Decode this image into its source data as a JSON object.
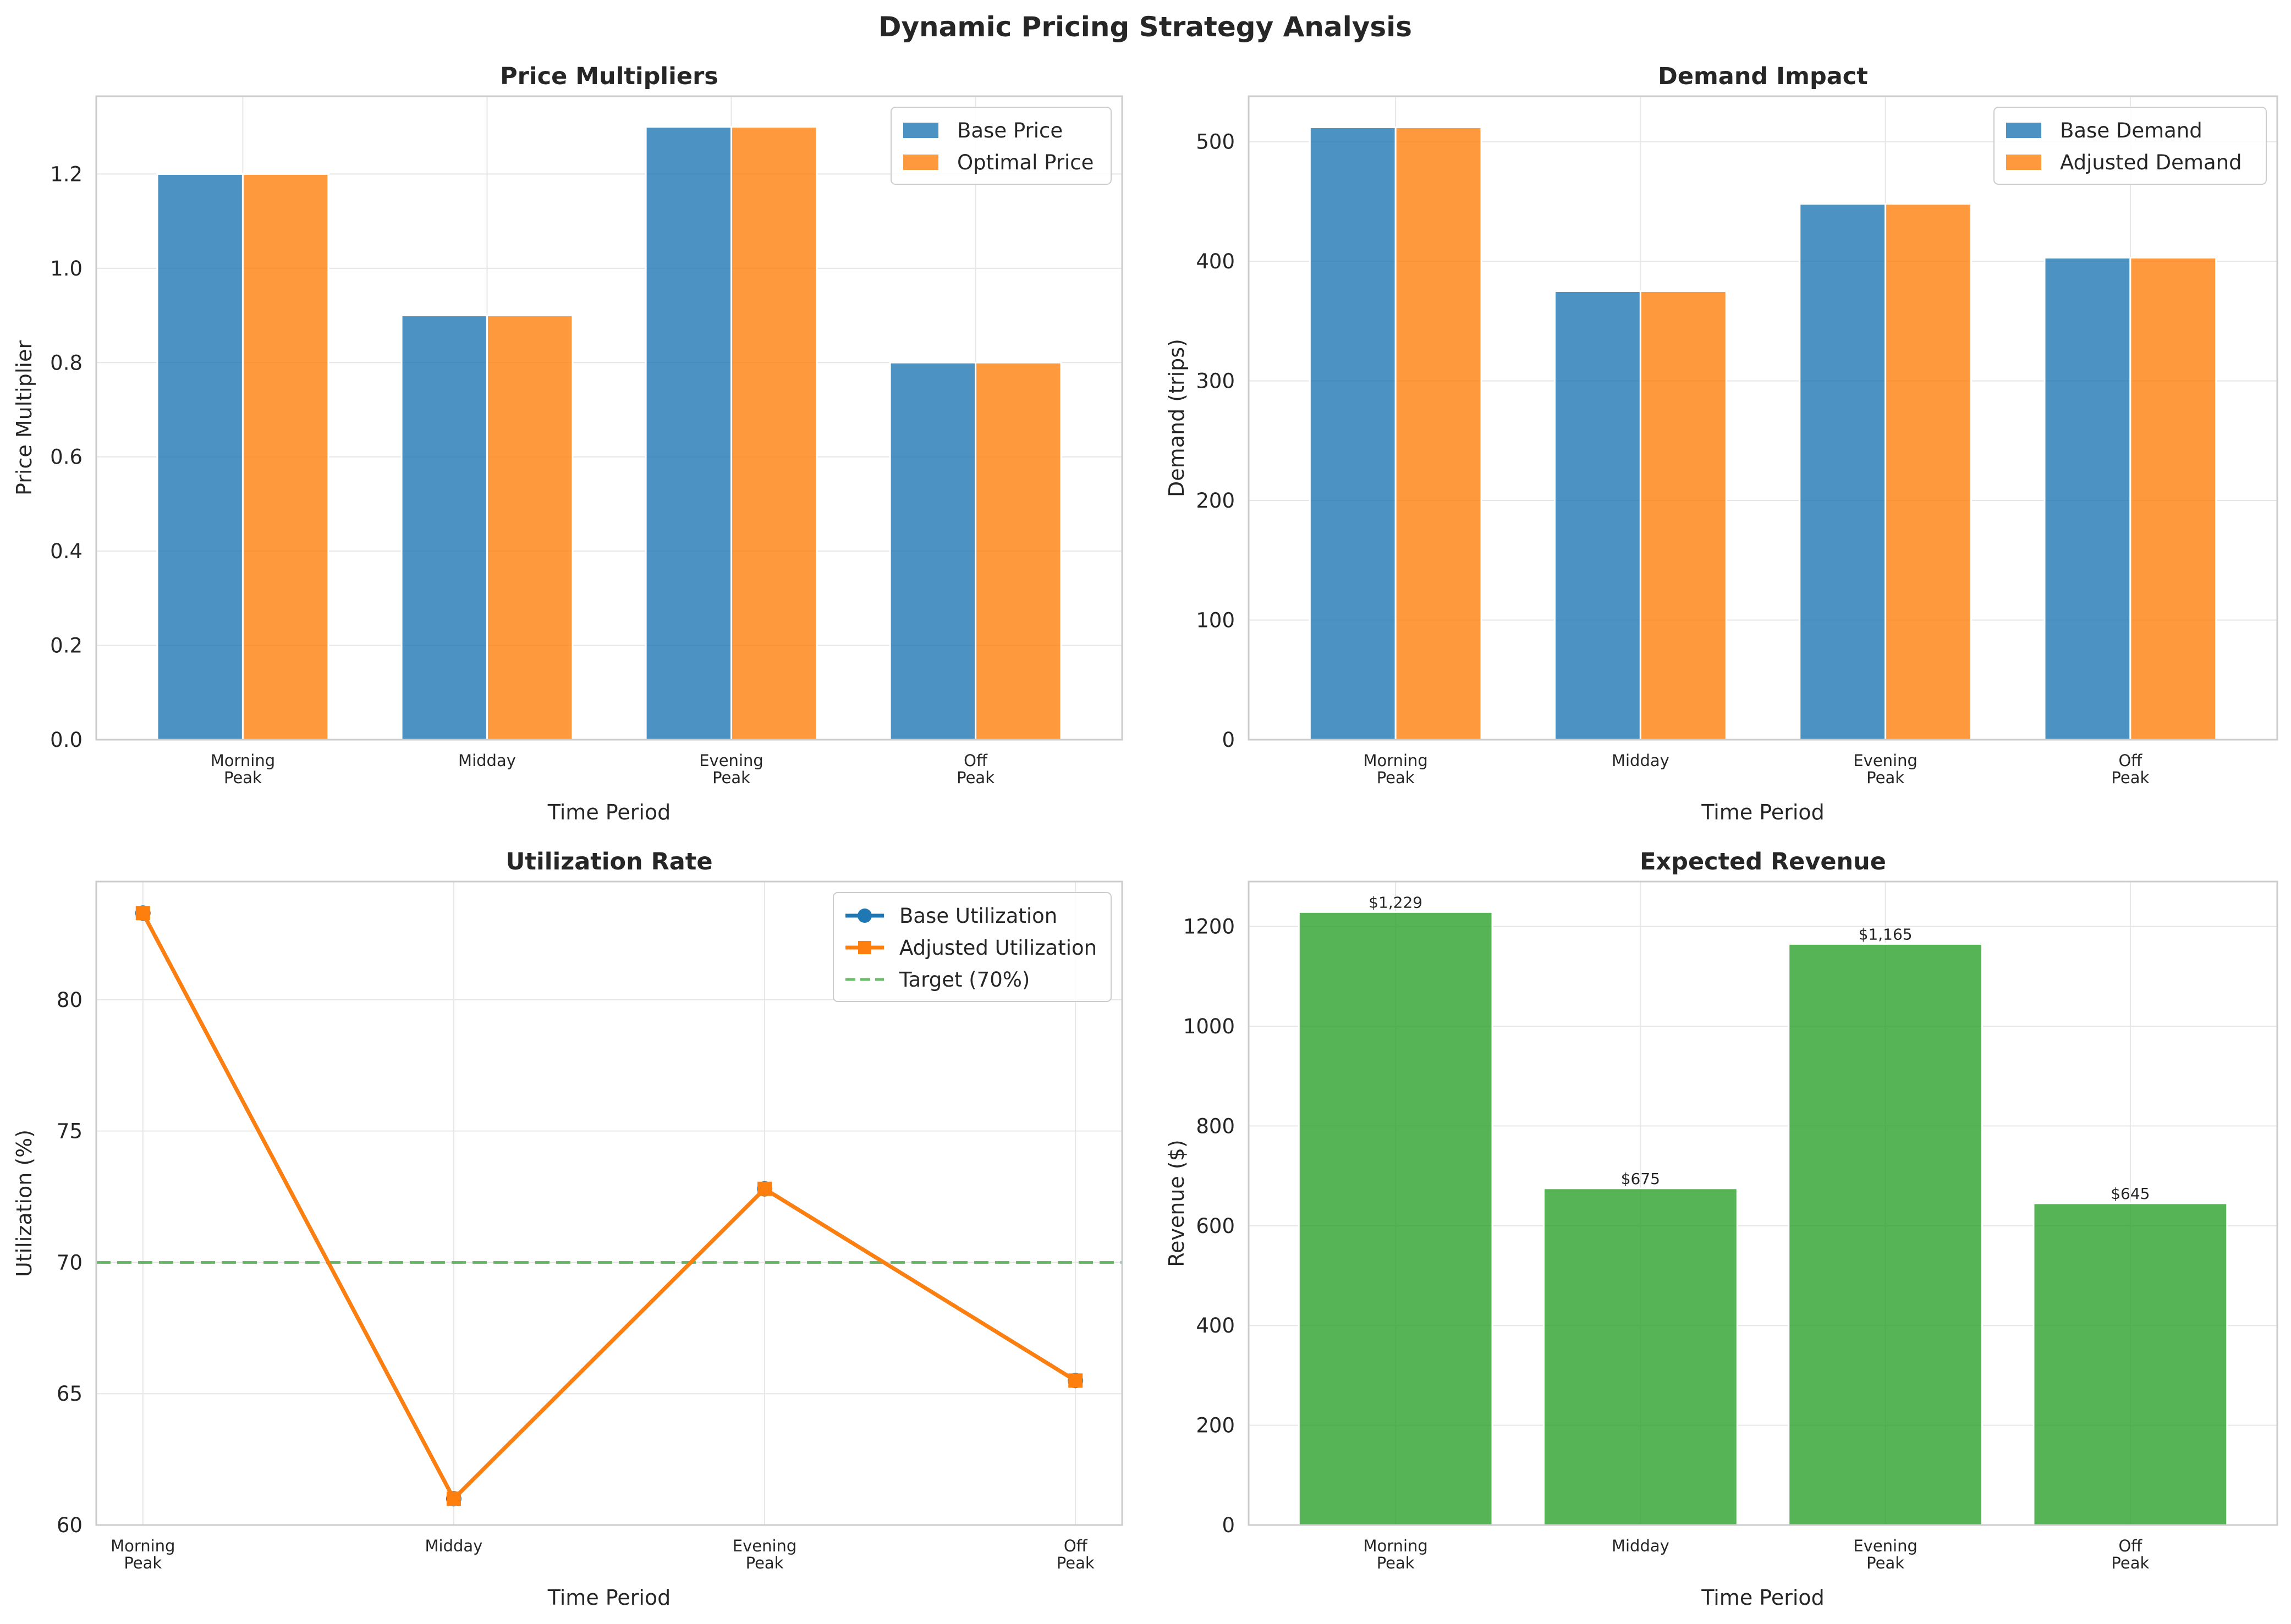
{
  "figure_title": "Dynamic Pricing Strategy Analysis",
  "colors": {
    "blue": "#1f77b4",
    "orange": "#ff7f0e",
    "green": "#2ca02c",
    "grid": "#e6e6e6",
    "frame": "#cccccc",
    "text": "#262626"
  },
  "chart_data": [
    {
      "id": "price",
      "type": "bar",
      "title": "Price Multipliers",
      "xlabel": "Time Period",
      "ylabel": "Price Multiplier",
      "categories": [
        "Morning\nPeak",
        "Midday",
        "Evening\nPeak",
        "Off\nPeak"
      ],
      "series": [
        {
          "name": "Base Price",
          "color": "#1f77b4",
          "values": [
            1.2,
            0.9,
            1.3,
            0.8
          ]
        },
        {
          "name": "Optimal Price",
          "color": "#ff7f0e",
          "values": [
            1.2,
            0.9,
            1.3,
            0.8
          ]
        }
      ],
      "ylim": [
        0,
        1.365
      ],
      "yticks": [
        0.0,
        0.2,
        0.4,
        0.6,
        0.8,
        1.0,
        1.2
      ],
      "ytick_decimals": 1,
      "legend": "top-right",
      "grid": true
    },
    {
      "id": "demand",
      "type": "bar",
      "title": "Demand Impact",
      "xlabel": "Time Period",
      "ylabel": "Demand (trips)",
      "categories": [
        "Morning\nPeak",
        "Midday",
        "Evening\nPeak",
        "Off\nPeak"
      ],
      "series": [
        {
          "name": "Base Demand",
          "color": "#1f77b4",
          "values": [
            512,
            375,
            448,
            403
          ]
        },
        {
          "name": "Adjusted Demand",
          "color": "#ff7f0e",
          "values": [
            512,
            375,
            448,
            403
          ]
        }
      ],
      "ylim": [
        0,
        538
      ],
      "yticks": [
        0,
        100,
        200,
        300,
        400,
        500
      ],
      "ytick_decimals": 0,
      "legend": "top-right",
      "grid": true
    },
    {
      "id": "util",
      "type": "line",
      "title": "Utilization Rate",
      "xlabel": "Time Period",
      "ylabel": "Utilization (%)",
      "categories": [
        "Morning\nPeak",
        "Midday",
        "Evening\nPeak",
        "Off\nPeak"
      ],
      "series": [
        {
          "name": "Base Utilization",
          "color": "#1f77b4",
          "marker": "circle",
          "values": [
            83.3,
            61.0,
            72.8,
            65.5
          ]
        },
        {
          "name": "Adjusted Utilization",
          "color": "#ff7f0e",
          "marker": "square",
          "values": [
            83.3,
            61.0,
            72.8,
            65.5
          ]
        }
      ],
      "reference_line": {
        "name": "Target (70%)",
        "value": 70,
        "color": "#2ca02c",
        "style": "dashed"
      },
      "xlim": [
        -0.15,
        3.15
      ],
      "ylim": [
        60,
        84.5
      ],
      "yticks": [
        60,
        65,
        70,
        75,
        80
      ],
      "ytick_decimals": 0,
      "legend": "top-right",
      "grid": true
    },
    {
      "id": "revenue",
      "type": "bar",
      "title": "Expected Revenue",
      "xlabel": "Time Period",
      "ylabel": "Revenue ($)",
      "categories": [
        "Morning\nPeak",
        "Midday",
        "Evening\nPeak",
        "Off\nPeak"
      ],
      "series": [
        {
          "name": "Revenue",
          "color": "#2ca02c",
          "values": [
            1229,
            675,
            1165,
            645
          ]
        }
      ],
      "data_labels": [
        "$1,229",
        "$675",
        "$1,165",
        "$645"
      ],
      "ylim": [
        0,
        1290
      ],
      "yticks": [
        0,
        200,
        400,
        600,
        800,
        1000,
        1200
      ],
      "ytick_decimals": 0,
      "legend": "none",
      "grid": true
    }
  ]
}
